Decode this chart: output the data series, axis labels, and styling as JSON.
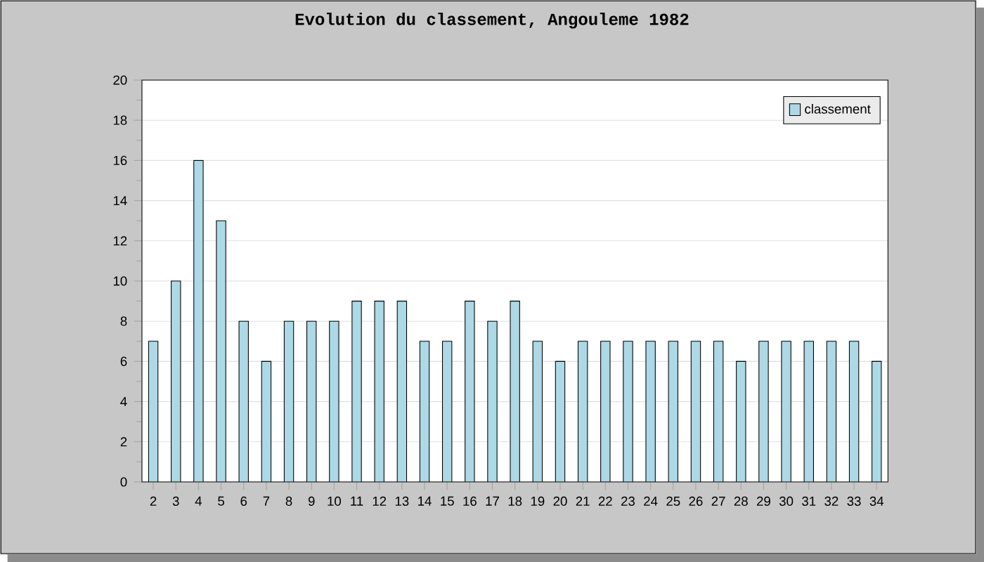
{
  "chart_data": {
    "type": "bar",
    "title": "Evolution du classement, Angouleme 1982",
    "categories": [
      "2",
      "3",
      "4",
      "5",
      "6",
      "7",
      "8",
      "9",
      "10",
      "11",
      "12",
      "13",
      "14",
      "15",
      "16",
      "17",
      "18",
      "19",
      "20",
      "21",
      "22",
      "23",
      "24",
      "25",
      "26",
      "27",
      "28",
      "29",
      "30",
      "31",
      "32",
      "33",
      "34"
    ],
    "series": [
      {
        "name": "classement",
        "color": "#add8e6",
        "values": [
          7,
          10,
          16,
          13,
          8,
          6,
          8,
          8,
          8,
          9,
          9,
          9,
          7,
          7,
          9,
          8,
          9,
          7,
          6,
          7,
          7,
          7,
          7,
          7,
          7,
          7,
          6,
          7,
          7,
          7,
          7,
          7,
          6
        ]
      }
    ],
    "ylim": [
      0,
      20
    ],
    "yticks": [
      0,
      2,
      4,
      6,
      8,
      10,
      12,
      14,
      16,
      18,
      20
    ],
    "grid": "y",
    "legend": "top right"
  }
}
